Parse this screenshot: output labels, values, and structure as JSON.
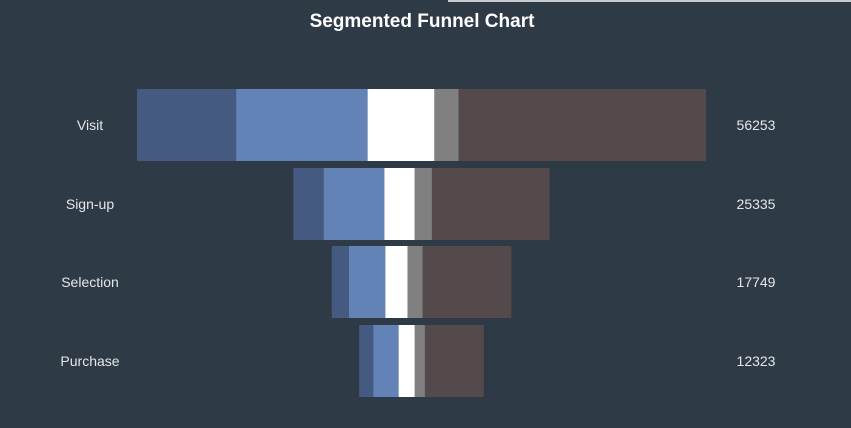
{
  "chart_data": {
    "type": "bar",
    "title": "Segmented Funnel Chart",
    "stages": [
      "Visit",
      "Sign-up",
      "Selection",
      "Purchase"
    ],
    "totals": [
      56253,
      25335,
      17749,
      12323
    ],
    "series": [
      {
        "values": [
          9800,
          3000,
          1700,
          1400
        ],
        "color": "#455a80"
      },
      {
        "values": [
          13000,
          6000,
          3600,
          2500
        ],
        "color": "#6383b6"
      },
      {
        "values": [
          6600,
          3000,
          2200,
          1600
        ],
        "color": "#ffffff"
      },
      {
        "values": [
          2400,
          1700,
          1500,
          1000
        ],
        "color": "#808080"
      },
      {
        "values": [
          24453,
          11635,
          8749,
          5823
        ],
        "color": "#554a4b"
      }
    ],
    "background": "#2f3a47",
    "text_color": "#e6e6e6",
    "title_color": "#ffffff"
  }
}
